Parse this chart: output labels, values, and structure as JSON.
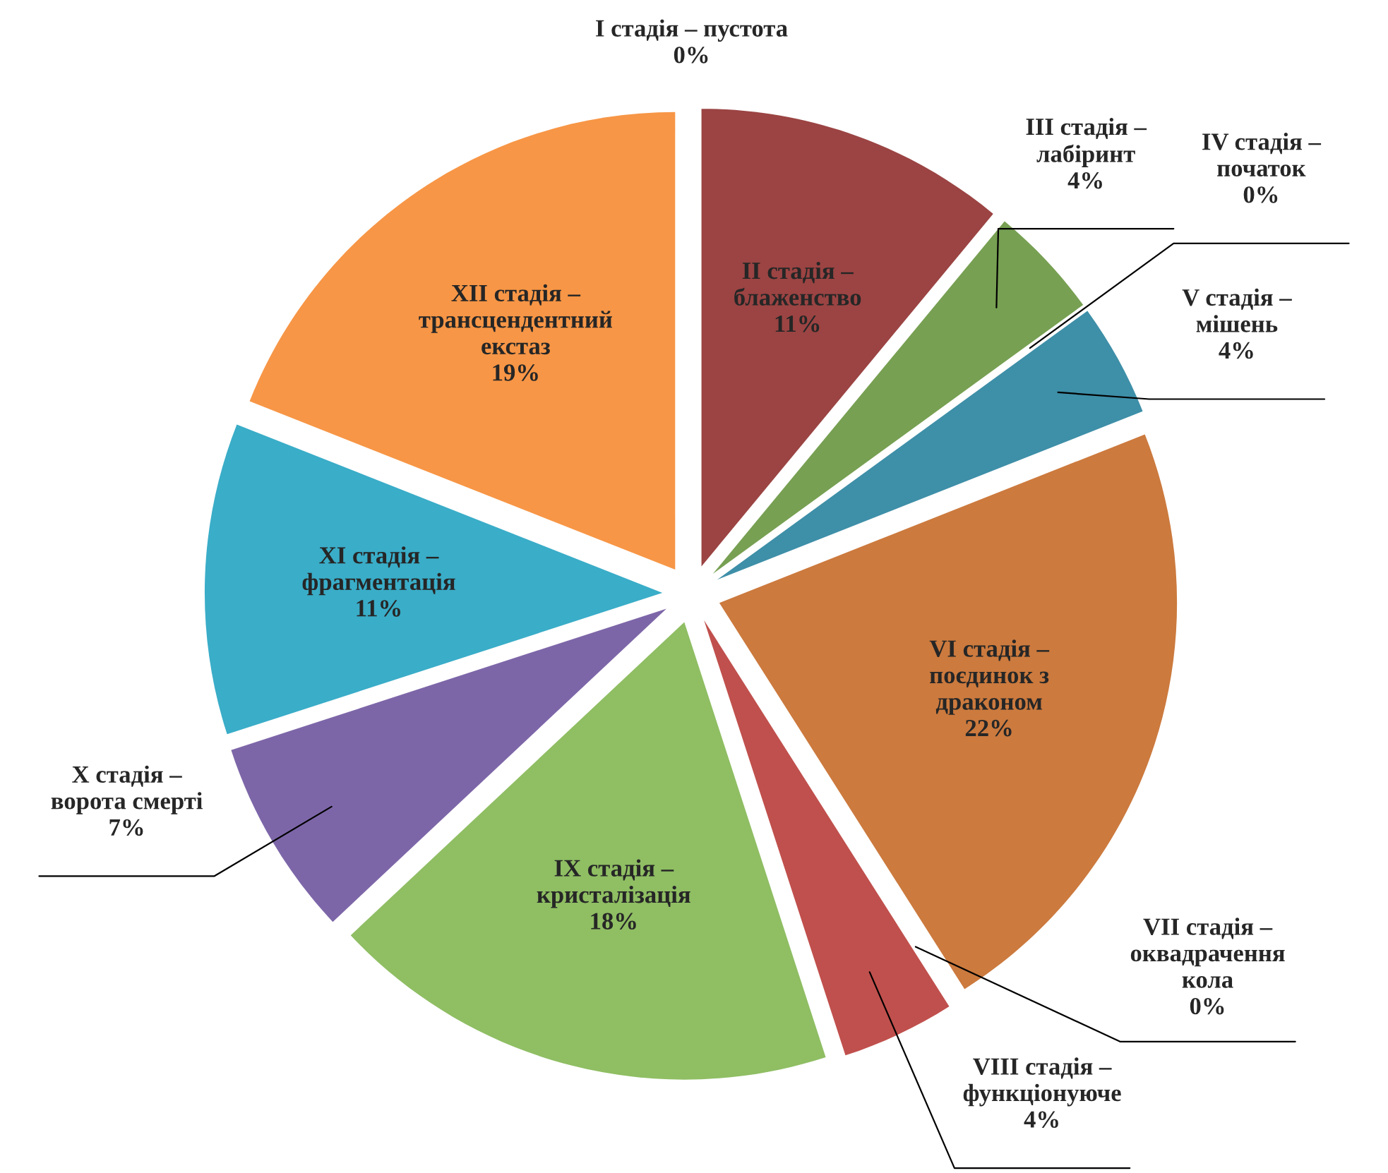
{
  "chart_data": {
    "type": "pie",
    "categories": [
      "I стадія – пустота",
      "II стадія –\nблаженство",
      "III стадія –\nлабіринт",
      "IV стадія –\nпочаток",
      "V стадія –\nмішень",
      "VI стадія –\nпоєдинок з\nдраконом",
      "VII стадія –\nоквадрачення\nкола",
      "VIII стадія –\nфункціонуюче",
      "IX стадія –\nкристалізація",
      "X стадія –\nворота смерті",
      "XI стадія –\nфрагментація",
      "XII стадія –\nтрансцендентний\nекстаз"
    ],
    "values": [
      0,
      11,
      4,
      0,
      4,
      22,
      0,
      4,
      18,
      7,
      11,
      19
    ],
    "value_labels": [
      "0%",
      "11%",
      "4%",
      "0%",
      "4%",
      "22%",
      "0%",
      "4%",
      "18%",
      "7%",
      "11%",
      "19%"
    ],
    "colors": [
      "#4f81bd",
      "#9b4443",
      "#77a052",
      "#7f6084",
      "#3e8fa8",
      "#cc7a3e",
      "#7ba0cd",
      "#c0504d",
      "#8fbe63",
      "#7d66a8",
      "#3aadc8",
      "#f79646"
    ]
  }
}
